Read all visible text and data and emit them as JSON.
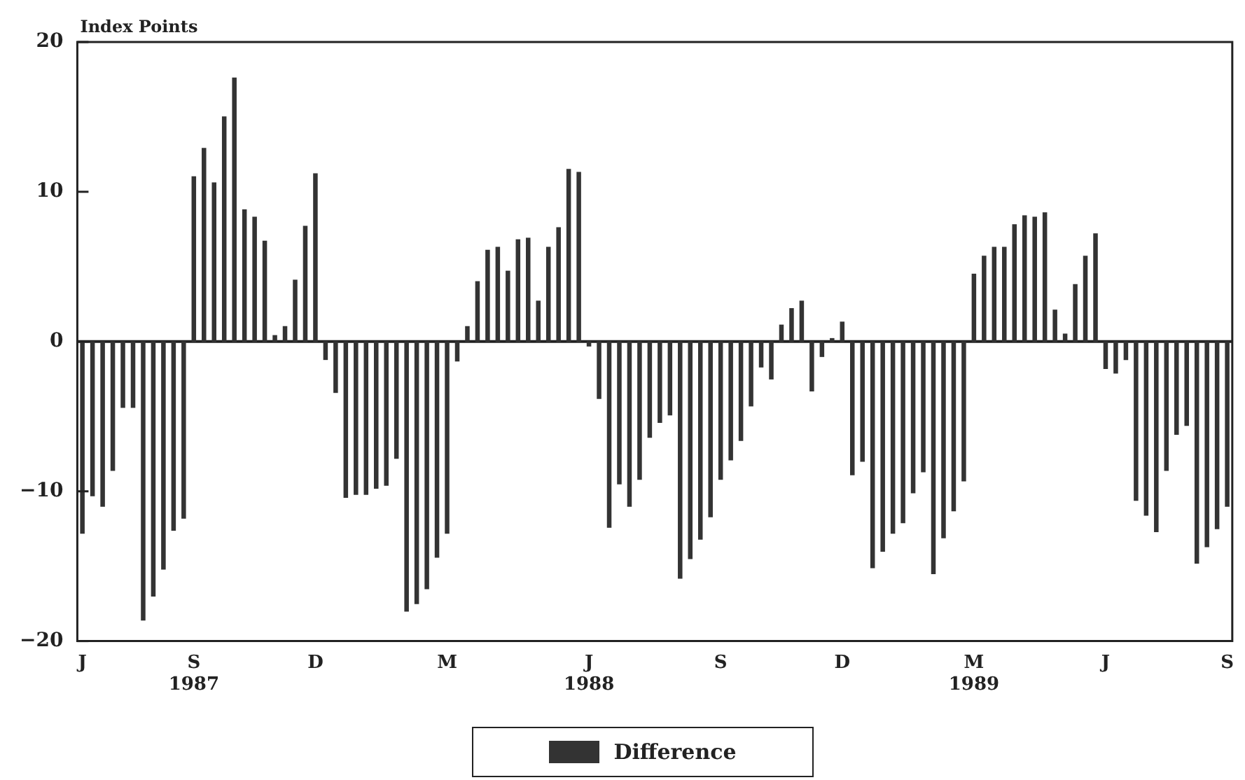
{
  "chart_data": {
    "type": "bar",
    "ylabel": "Index Points",
    "categories": [
      "J",
      null,
      null,
      null,
      null,
      null,
      null,
      null,
      null,
      null,
      null,
      "S\n1987",
      null,
      null,
      null,
      null,
      null,
      null,
      null,
      null,
      null,
      null,
      null,
      "D",
      null,
      null,
      null,
      null,
      null,
      null,
      null,
      null,
      null,
      null,
      null,
      null,
      "M",
      null,
      null,
      null,
      null,
      null,
      null,
      null,
      null,
      null,
      null,
      null,
      null,
      null,
      "J\n1988",
      null,
      null,
      null,
      null,
      null,
      null,
      null,
      null,
      null,
      null,
      null,
      null,
      "S",
      null,
      null,
      null,
      null,
      null,
      null,
      null,
      null,
      null,
      null,
      null,
      "D",
      null,
      null,
      null,
      null,
      null,
      null,
      null,
      null,
      null,
      null,
      null,
      null,
      "M\n1989",
      null,
      null,
      null,
      null,
      null,
      null,
      null,
      null,
      null,
      null,
      null,
      null,
      "J",
      null,
      null,
      null,
      null,
      null,
      null,
      null,
      null,
      null,
      null,
      null,
      "S"
    ],
    "series": [
      {
        "name": "Difference",
        "color": "#333333",
        "values": [
          -12.8,
          -10.3,
          -11,
          -8.6,
          -4.4,
          -4.4,
          -18.6,
          -17,
          -15.2,
          -12.6,
          -11.8,
          11,
          12.9,
          10.6,
          15,
          17.6,
          8.8,
          8.3,
          6.7,
          0.4,
          1,
          4.1,
          7.7,
          11.2,
          -1.2,
          -3.4,
          -10.4,
          -10.2,
          -10.2,
          -9.8,
          -9.6,
          -7.8,
          -18,
          -17.5,
          -16.5,
          -14.4,
          -12.8,
          -1.3,
          1,
          4,
          6.1,
          6.3,
          4.7,
          6.8,
          6.9,
          2.7,
          6.3,
          7.6,
          11.5,
          11.3,
          -0.3,
          -3.8,
          -12.4,
          -9.5,
          -11,
          -9.2,
          -6.4,
          -5.4,
          -4.9,
          -15.8,
          -14.5,
          -13.2,
          -11.7,
          -9.2,
          -7.9,
          -6.6,
          -4.3,
          -1.7,
          -2.5,
          1.1,
          2.2,
          2.7,
          -3.3,
          -1,
          0.2,
          1.3,
          -8.9,
          -8,
          -15.1,
          -14,
          -12.8,
          -12.1,
          -10.1,
          -8.7,
          -15.5,
          -13.1,
          -11.3,
          -9.3,
          4.5,
          5.7,
          6.3,
          6.3,
          7.8,
          8.4,
          8.3,
          8.6,
          2.1,
          0.5,
          3.8,
          5.7,
          7.2,
          -1.8,
          -2.1,
          -1.2,
          -10.6,
          -11.6,
          -12.7,
          -8.6,
          -6.2,
          -5.6,
          -14.8,
          -13.7,
          -12.5,
          -11
        ]
      }
    ],
    "ylim": [
      -20,
      20
    ],
    "yticks": [
      -20,
      -10,
      0,
      10,
      20
    ],
    "ref_lines": [
      {
        "axis": "y",
        "value": 0,
        "color": "#222222"
      }
    ],
    "grid": false,
    "legend": "bottom"
  }
}
